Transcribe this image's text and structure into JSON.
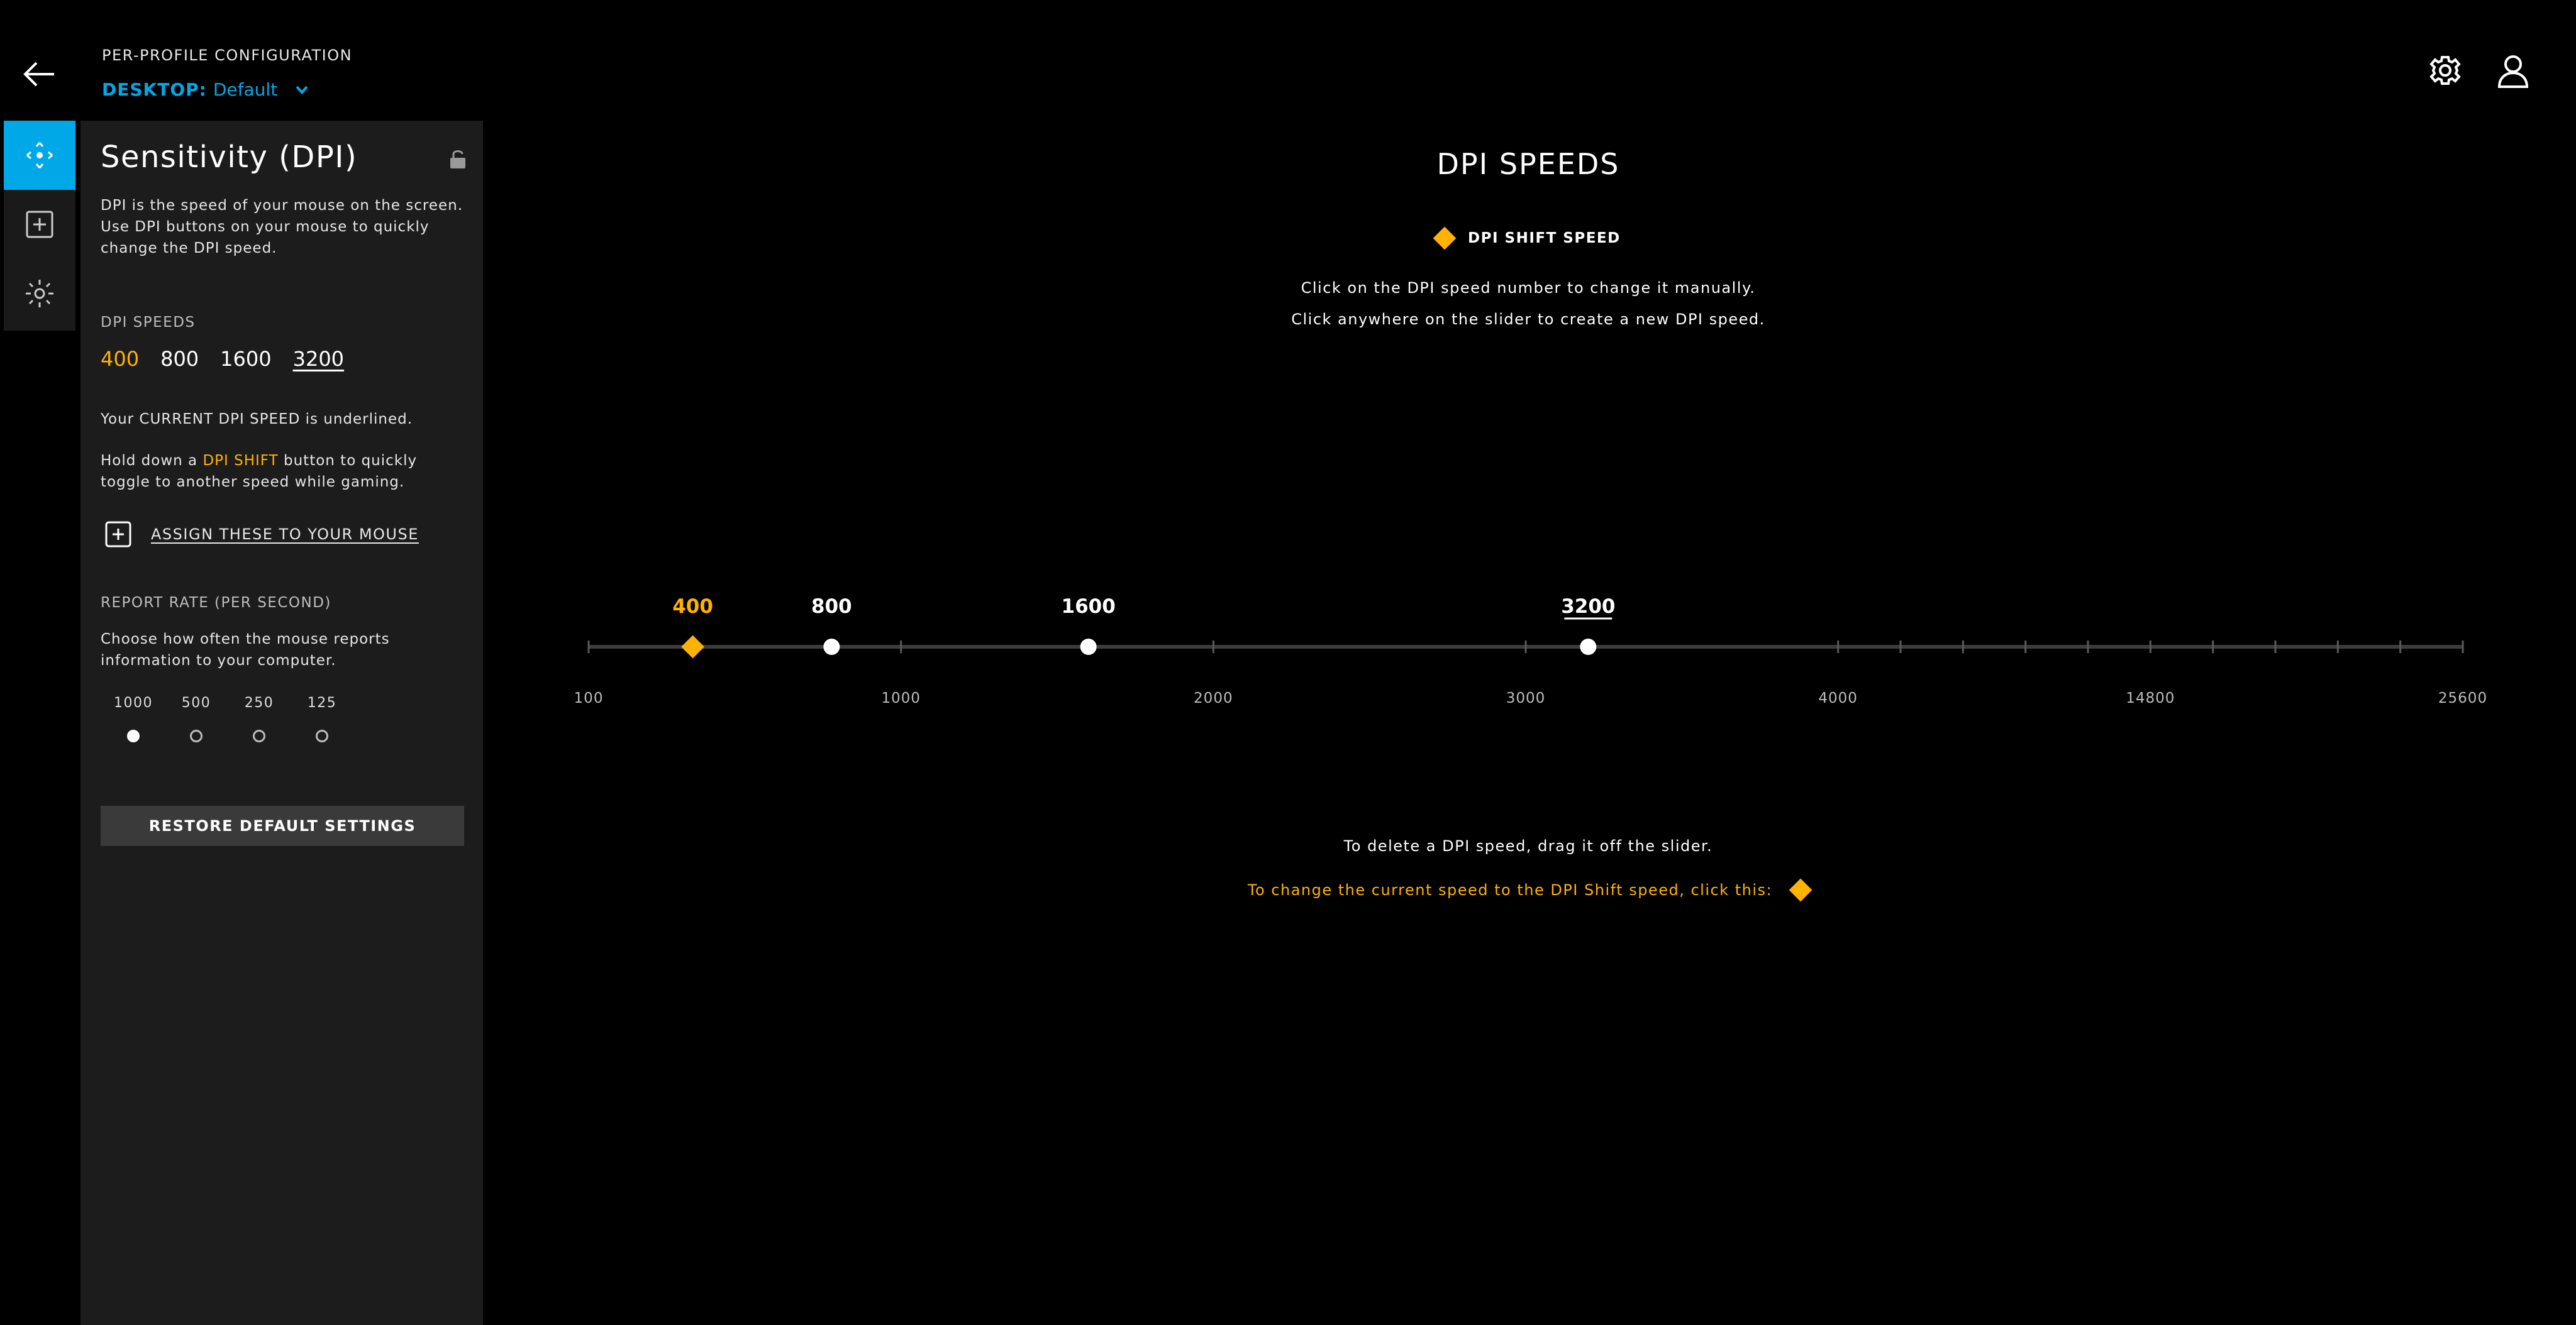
{
  "header": {
    "title": "PER-PROFILE CONFIGURATION",
    "profile_key": "DESKTOP:",
    "profile_value": "Default"
  },
  "icons": {
    "back": "arrow-left-icon",
    "settings": "gear-icon",
    "account": "user-icon",
    "rail": [
      "move-icon",
      "plus-square-icon",
      "sun-lighting-icon"
    ],
    "lock": "unlock-icon"
  },
  "panel": {
    "title": "Sensitivity (DPI)",
    "description": "DPI is the speed of your mouse on the screen. Use DPI buttons on your mouse to quickly change the DPI speed.",
    "dpi_speeds_label": "DPI SPEEDS",
    "dpi_speeds": [
      "400",
      "800",
      "1600",
      "3200"
    ],
    "current_note": "Your CURRENT DPI SPEED is underlined.",
    "shift_note_pre": "Hold down a ",
    "shift_note_hl": "DPI SHIFT",
    "shift_note_post": " button to quickly toggle to another speed while gaming.",
    "assign_label": "ASSIGN THESE TO YOUR MOUSE",
    "report_rate_label": "REPORT RATE (PER SECOND)",
    "report_rate_desc": "Choose how often the mouse reports information to your computer.",
    "report_rates": [
      "1000",
      "500",
      "250",
      "125"
    ],
    "selected_report_rate": "1000",
    "restore_label": "RESTORE DEFAULT SETTINGS"
  },
  "main": {
    "title": "DPI SPEEDS",
    "shift_legend": "DPI SHIFT SPEED",
    "instruction_1": "Click on the DPI speed number to change it manually.",
    "instruction_2": "Click anywhere on the slider to create a new DPI speed.",
    "delete_note": "To delete a DPI speed, drag it off the slider.",
    "change_note": "To change the current speed to the DPI Shift speed, click this:"
  },
  "slider": {
    "axis_labels": [
      "100",
      "1000",
      "2000",
      "3000",
      "4000",
      "14800",
      "25600"
    ],
    "points": [
      {
        "value": 400,
        "label": "400",
        "shift": true,
        "current": false
      },
      {
        "value": 800,
        "label": "800",
        "shift": false,
        "current": false
      },
      {
        "value": 1600,
        "label": "1600",
        "shift": false,
        "current": false
      },
      {
        "value": 3200,
        "label": "3200",
        "shift": false,
        "current": true
      }
    ]
  },
  "colors": {
    "accent": "#00a8e8",
    "shift": "#ffb200",
    "panel_bg": "#1c1c1c",
    "rail_bg": "#1a1a1a",
    "button_bg": "#3a3a3a"
  }
}
